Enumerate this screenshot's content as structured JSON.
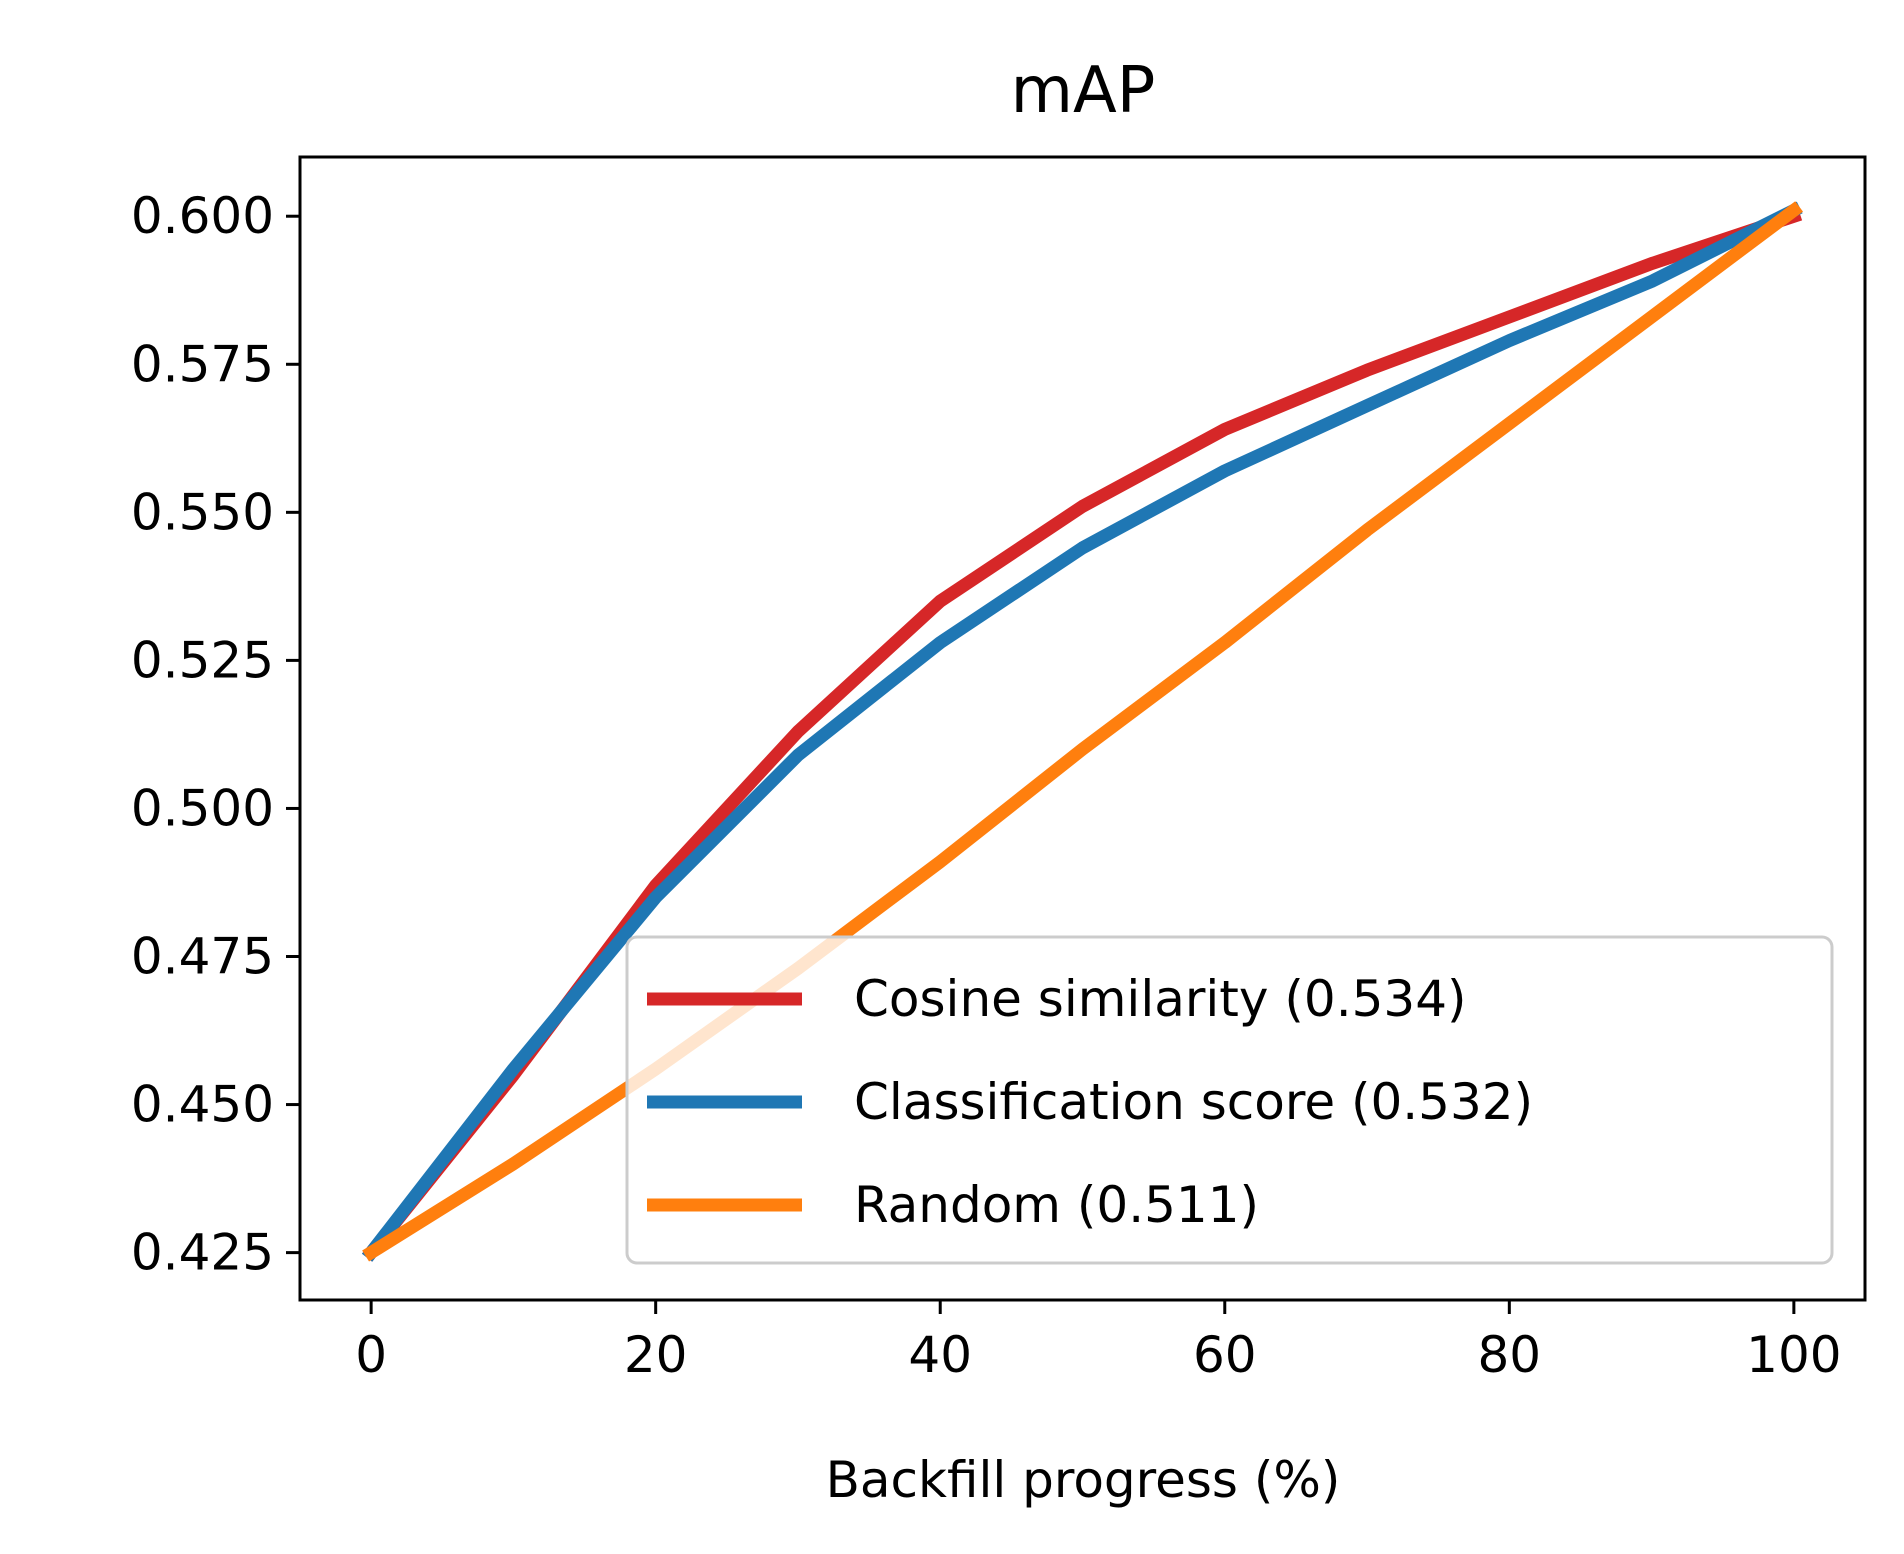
{
  "chart_data": {
    "type": "line",
    "title": "mAP",
    "xlabel": "Backfill progress (%)",
    "ylabel": "",
    "xlim": [
      -5,
      105
    ],
    "ylim": [
      0.417,
      0.61
    ],
    "xticks": [
      0,
      20,
      40,
      60,
      80,
      100
    ],
    "xtick_labels": [
      "0",
      "20",
      "40",
      "60",
      "80",
      "100"
    ],
    "yticks": [
      0.425,
      0.45,
      0.475,
      0.5,
      0.525,
      0.55,
      0.575,
      0.6
    ],
    "ytick_labels": [
      "0.425",
      "0.450",
      "0.475",
      "0.500",
      "0.525",
      "0.550",
      "0.575",
      "0.600"
    ],
    "grid": false,
    "legend_position": "lower-right",
    "x": [
      0,
      10,
      20,
      30,
      40,
      50,
      60,
      70,
      80,
      90,
      100
    ],
    "series": [
      {
        "name": "Cosine similarity (0.534)",
        "color": "#d62728",
        "values": [
          0.425,
          0.455,
          0.487,
          0.513,
          0.535,
          0.551,
          0.564,
          0.574,
          0.583,
          0.592,
          0.6
        ]
      },
      {
        "name": "Classification score (0.532)",
        "color": "#1f77b4",
        "values": [
          0.425,
          0.456,
          0.485,
          0.509,
          0.528,
          0.544,
          0.557,
          0.568,
          0.579,
          0.589,
          0.601
        ]
      },
      {
        "name": "Random (0.511)",
        "color": "#ff7f0e",
        "values": [
          0.425,
          0.44,
          0.456,
          0.473,
          0.491,
          0.51,
          0.528,
          0.547,
          0.565,
          0.583,
          0.601
        ]
      }
    ]
  }
}
